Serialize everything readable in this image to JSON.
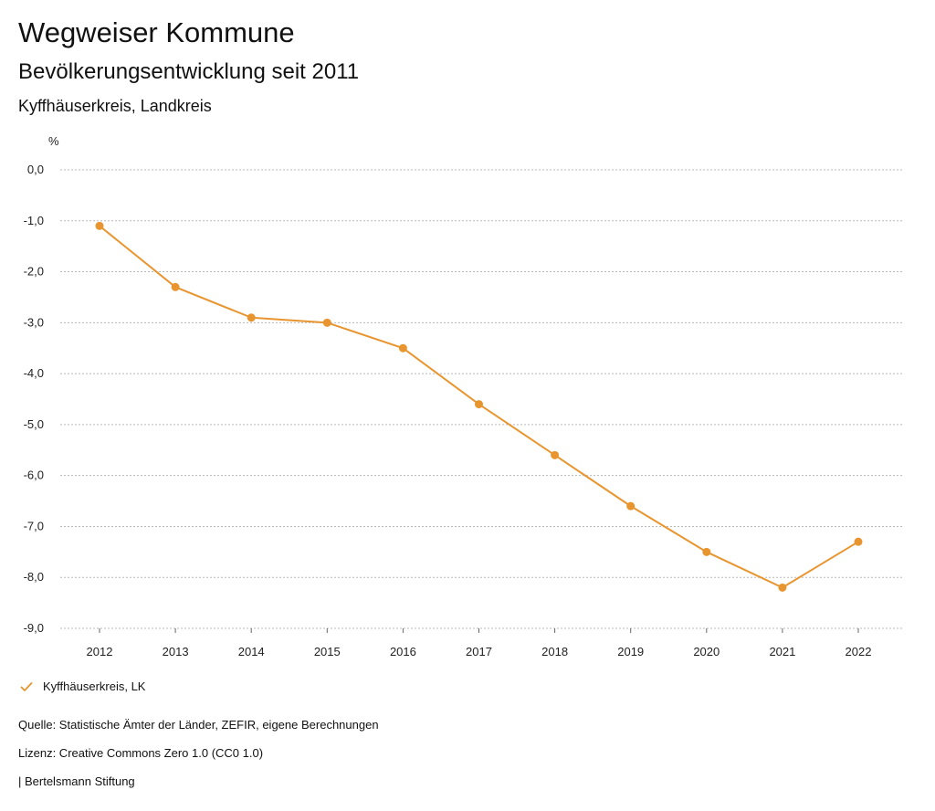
{
  "header": {
    "title": "Wegweiser Kommune",
    "subtitle": "Bevölkerungsentwicklung seit 2011",
    "region": "Kyffhäuserkreis, Landkreis"
  },
  "chart_data": {
    "type": "line",
    "ylabel": "%",
    "ylim": [
      -9.0,
      0.0
    ],
    "yticks": [
      0.0,
      -1.0,
      -2.0,
      -3.0,
      -4.0,
      -5.0,
      -6.0,
      -7.0,
      -8.0,
      -9.0
    ],
    "ytick_labels": [
      "0,0",
      "-1,0",
      "-2,0",
      "-3,0",
      "-4,0",
      "-5,0",
      "-6,0",
      "-7,0",
      "-8,0",
      "-9,0"
    ],
    "x": [
      "2012",
      "2013",
      "2014",
      "2015",
      "2016",
      "2017",
      "2018",
      "2019",
      "2020",
      "2021",
      "2022"
    ],
    "series": [
      {
        "name": "Kyffhäuserkreis, LK",
        "color": "#e8952f",
        "values": [
          -1.1,
          -2.3,
          -2.9,
          -3.0,
          -3.5,
          -4.6,
          -5.6,
          -6.6,
          -7.5,
          -8.2,
          -7.3
        ]
      }
    ],
    "grid": true,
    "legend": "bottom-left"
  },
  "footer": {
    "source": "Quelle: Statistische Ämter der Länder, ZEFIR, eigene Berechnungen",
    "license": "Lizenz: Creative Commons Zero 1.0 (CC0 1.0)",
    "publisher": "| Bertelsmann Stiftung"
  }
}
